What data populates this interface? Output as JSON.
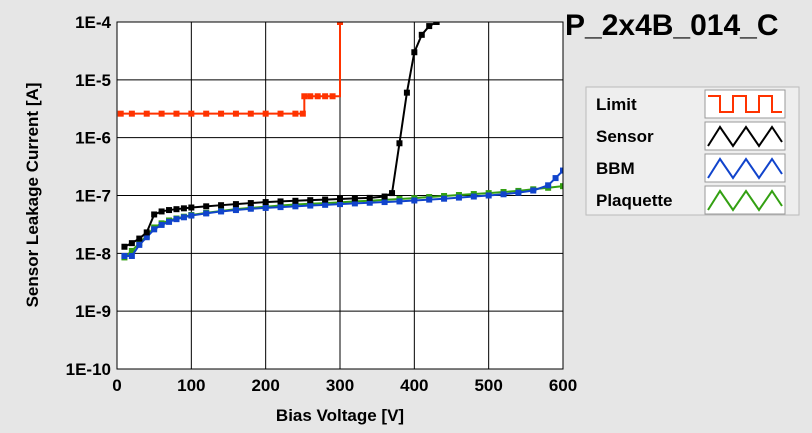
{
  "chart_data": {
    "type": "line",
    "title": "P_2x4B_014_C",
    "xlabel": "Bias Voltage [V]",
    "ylabel": "Sensor Leakage Current [A]",
    "xlim": [
      0,
      600
    ],
    "ylim": [
      1e-10,
      0.0001
    ],
    "yscale": "log",
    "grid": true,
    "legend_position": "right",
    "x_ticks": [
      0,
      100,
      200,
      300,
      400,
      500,
      600
    ],
    "x_tick_labels": [
      "0",
      "100",
      "200",
      "300",
      "400",
      "500",
      "600"
    ],
    "y_ticks": [
      1e-10,
      1e-09,
      1e-08,
      1e-07,
      1e-06,
      1e-05,
      0.0001
    ],
    "y_tick_labels": [
      "1E-10",
      "1E-9",
      "1E-8",
      "1E-7",
      "1E-6",
      "1E-5",
      "1E-4"
    ],
    "series": [
      {
        "name": "Limit",
        "color": "#ff3300",
        "step": true,
        "x": [
          5,
          20,
          40,
          60,
          80,
          100,
          120,
          140,
          160,
          180,
          200,
          220,
          240,
          250,
          252,
          260,
          270,
          280,
          290,
          300
        ],
        "y": [
          2.6e-06,
          2.6e-06,
          2.6e-06,
          2.6e-06,
          2.6e-06,
          2.6e-06,
          2.6e-06,
          2.6e-06,
          2.6e-06,
          2.6e-06,
          2.6e-06,
          2.6e-06,
          2.6e-06,
          2.6e-06,
          5.2e-06,
          5.2e-06,
          5.2e-06,
          5.2e-06,
          5.2e-06,
          0.0001
        ]
      },
      {
        "name": "Sensor",
        "color": "#000000",
        "x": [
          10,
          20,
          30,
          40,
          50,
          60,
          70,
          80,
          90,
          100,
          120,
          140,
          160,
          180,
          200,
          220,
          240,
          260,
          280,
          300,
          320,
          340,
          360,
          370,
          380,
          390,
          400,
          410,
          420,
          430
        ],
        "y": [
          1.3e-08,
          1.5e-08,
          1.8e-08,
          2.3e-08,
          4.7e-08,
          5.3e-08,
          5.6e-08,
          5.8e-08,
          6e-08,
          6.2e-08,
          6.5e-08,
          6.8e-08,
          7.1e-08,
          7.4e-08,
          7.7e-08,
          7.9e-08,
          8.1e-08,
          8.3e-08,
          8.5e-08,
          8.7e-08,
          8.9e-08,
          9.1e-08,
          9.6e-08,
          1.1e-07,
          8e-07,
          6e-06,
          3e-05,
          6e-05,
          8.5e-05,
          0.0001
        ]
      },
      {
        "name": "BBM",
        "color": "#1144cc",
        "x": [
          10,
          20,
          30,
          40,
          50,
          60,
          70,
          80,
          90,
          100,
          120,
          140,
          160,
          180,
          200,
          220,
          240,
          260,
          280,
          300,
          320,
          340,
          360,
          380,
          400,
          420,
          440,
          460,
          480,
          500,
          520,
          540,
          560,
          580,
          590,
          600
        ],
        "y": [
          9e-09,
          9e-09,
          1.4e-08,
          1.9e-08,
          2.6e-08,
          3.1e-08,
          3.5e-08,
          3.9e-08,
          4.2e-08,
          4.5e-08,
          4.9e-08,
          5.3e-08,
          5.6e-08,
          5.9e-08,
          6.1e-08,
          6.3e-08,
          6.5e-08,
          6.7e-08,
          6.9e-08,
          7.1e-08,
          7.3e-08,
          7.5e-08,
          7.7e-08,
          7.9e-08,
          8.2e-08,
          8.5e-08,
          8.8e-08,
          9.2e-08,
          9.6e-08,
          1e-07,
          1.05e-07,
          1.12e-07,
          1.22e-07,
          1.5e-07,
          2e-07,
          2.7e-07
        ]
      },
      {
        "name": "Plaquette",
        "color": "#33a012",
        "x": [
          10,
          20,
          30,
          40,
          50,
          60,
          70,
          80,
          90,
          100,
          120,
          140,
          160,
          180,
          200,
          220,
          240,
          260,
          280,
          300,
          320,
          340,
          360,
          380,
          400,
          420,
          440,
          460,
          480,
          500,
          520,
          540,
          560,
          580,
          600
        ],
        "y": [
          8.5e-09,
          1.1e-08,
          1.5e-08,
          2e-08,
          2.8e-08,
          3.3e-08,
          3.7e-08,
          4e-08,
          4.3e-08,
          4.6e-08,
          5e-08,
          5.4e-08,
          5.8e-08,
          6.1e-08,
          6.4e-08,
          6.7e-08,
          7e-08,
          7.2e-08,
          7.4e-08,
          7.6e-08,
          7.9e-08,
          8.1e-08,
          8.4e-08,
          8.7e-08,
          9e-08,
          9.4e-08,
          9.8e-08,
          1.02e-07,
          1.06e-07,
          1.1e-07,
          1.15e-07,
          1.2e-07,
          1.28e-07,
          1.36e-07,
          1.45e-07
        ]
      }
    ]
  }
}
